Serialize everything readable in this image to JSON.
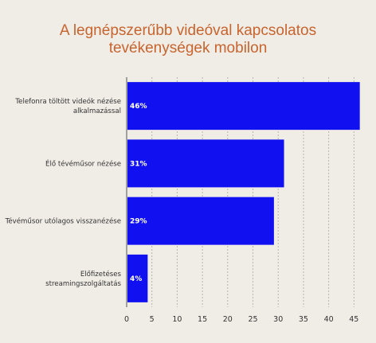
{
  "chart_data": {
    "type": "bar",
    "orientation": "horizontal",
    "title_lines": [
      "A legnépszerűbb videóval kapcsolatos",
      "tevékenységek mobilon"
    ],
    "categories": [
      [
        "Telefonra töltött videók nézése",
        "alkalmazással"
      ],
      [
        "Élő tévéműsor nézése"
      ],
      [
        "Tévéműsor utólagos visszanézése"
      ],
      [
        "Előfizetéses",
        "streamingszolgáltatás"
      ]
    ],
    "values": [
      46,
      31,
      29,
      4
    ],
    "data_labels": [
      "46%",
      "31%",
      "29%",
      "4%"
    ],
    "xlim": [
      0,
      47
    ],
    "xticks": [
      0,
      5,
      10,
      15,
      20,
      25,
      30,
      35,
      40,
      45
    ],
    "grid": "vertical-dashed",
    "colors": {
      "bar": "#1010f0",
      "title": "#c8642d",
      "grid": "#b8b4ae",
      "background": "#f0ece6"
    }
  }
}
